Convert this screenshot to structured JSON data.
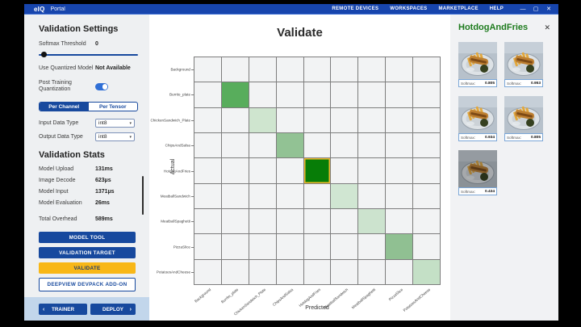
{
  "titlebar": {
    "logo": "eIQ",
    "app_name": "Portal",
    "menu": [
      "REMOTE DEVICES",
      "WORKSPACES",
      "MARKETPLACE",
      "HELP"
    ],
    "window_controls": [
      {
        "name": "minimize",
        "glyph": "—"
      },
      {
        "name": "maximize",
        "glyph": "▢"
      },
      {
        "name": "close",
        "glyph": "✕"
      }
    ]
  },
  "sidebar": {
    "settings_title": "Validation Settings",
    "softmax_threshold": {
      "label": "Softmax Threshold",
      "value": "0"
    },
    "use_quantized": {
      "label": "Use Quantized Model",
      "value": "Not Available"
    },
    "post_training_quantization": {
      "label": "Post Training Quantization",
      "enabled": true
    },
    "tabs": [
      {
        "label": "Per Channel",
        "active": true
      },
      {
        "label": "Per Tensor",
        "active": false
      }
    ],
    "input_data_type": {
      "label": "Input Data Type",
      "value": "int8"
    },
    "output_data_type": {
      "label": "Output Data Type",
      "value": "int8"
    },
    "stats_title": "Validation Stats",
    "stats": [
      {
        "label": "Model Upload",
        "value": "131ms"
      },
      {
        "label": "Image Decode",
        "value": "623µs"
      },
      {
        "label": "Model Input",
        "value": "1371µs"
      },
      {
        "label": "Model Evaluation",
        "value": "26ms"
      },
      {
        "label": "Total Overhead",
        "value": "589ms",
        "gap": true
      }
    ],
    "buttons": [
      {
        "label": "MODEL TOOL",
        "style": "primary"
      },
      {
        "label": "VALIDATION TARGET",
        "style": "primary"
      },
      {
        "label": "VALIDATE",
        "style": "warning"
      },
      {
        "label": "DEEPVIEW DEVPACK ADD-ON",
        "style": "outline"
      }
    ],
    "nav": {
      "back": {
        "chevron": "‹",
        "label": "TRAINER"
      },
      "forward": {
        "label": "DEPLOY",
        "chevron": "›"
      }
    }
  },
  "chart_data": {
    "type": "heatmap",
    "title": "Validate",
    "xlabel": "Predicted",
    "ylabel": "Actual",
    "categories": [
      "Background",
      "Burrito_plate",
      "ChickenSandwich_Plate",
      "ChipsAndSalsa",
      "HotdogAndFries",
      "MeatballSandwich",
      "MeatballSpaghetti",
      "PizzaSlice",
      "PotatoesAndCheese"
    ],
    "grid": {
      "rows": 9,
      "cols": 9
    },
    "empty_cell_color": "#f2f3f4",
    "cells": [
      {
        "row": 1,
        "col": 1,
        "color": "#58ad5c"
      },
      {
        "row": 2,
        "col": 2,
        "color": "#cfe5cf"
      },
      {
        "row": 3,
        "col": 3,
        "color": "#92c294"
      },
      {
        "row": 4,
        "col": 4,
        "color": "#077d07",
        "selected": true
      },
      {
        "row": 5,
        "col": 5,
        "color": "#d0e6d2"
      },
      {
        "row": 6,
        "col": 6,
        "color": "#cce3ce"
      },
      {
        "row": 7,
        "col": 7,
        "color": "#90c092"
      },
      {
        "row": 8,
        "col": 8,
        "color": "#c4e0c6"
      }
    ],
    "selected_border_color": "#f0b92b",
    "legend": "none"
  },
  "detail_panel": {
    "title": "HotdogAndFries",
    "close_glyph": "✕",
    "softmax_label": "Softmax:",
    "items": [
      {
        "softmax": "0.805"
      },
      {
        "softmax": "0.953"
      },
      {
        "softmax": "0.934"
      },
      {
        "softmax": "0.805"
      },
      {
        "softmax": "0.434",
        "dark": true
      }
    ]
  },
  "colors": {
    "titlebar": "#1745ad",
    "accent_blue": "#17499e",
    "validate_amber": "#f8b717",
    "nav_strip": "#c2d6eb",
    "panel_title_green": "#1e7b1e",
    "grid_line": "#7d7d7d"
  }
}
